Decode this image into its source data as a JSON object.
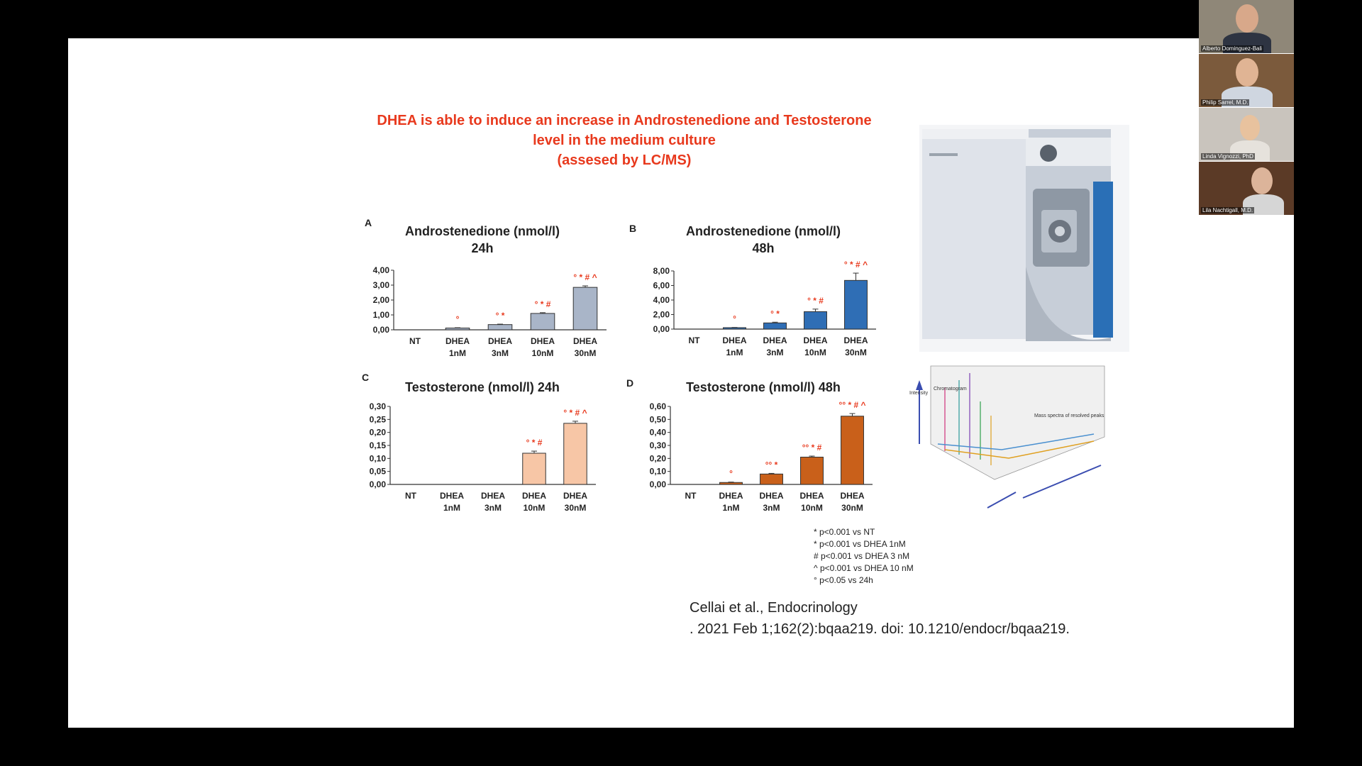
{
  "slide": {
    "title_lines": [
      "DHEA is able to induce an increase in Androstenedione and Testosterone",
      "level in the medium culture",
      "(assesed by LC/MS)"
    ],
    "legend": [
      "* p<0.001 vs NT",
      "* p<0.001 vs DHEA 1nM",
      "# p<0.001 vs DHEA 3 nM",
      "^ p<0.001 vs DHEA 10 nM",
      "° p<0.05 vs 24h"
    ],
    "citation_lines": [
      "Cellai et al., Endocrinology",
      ". 2021 Feb 1;162(2):bqaa219. doi: 10.1210/endocr/bqaa219."
    ],
    "figure_labels": {
      "intensity": "Intensity",
      "chromatogram": "Chromatogram",
      "mass_spectra": "Mass spectra of resolved peaks"
    }
  },
  "participants": [
    {
      "name": "Alberto Dominguez-Bali"
    },
    {
      "name": "Philip Sarrel, M.D."
    },
    {
      "name": "Linda Vignozzi, PhD"
    },
    {
      "name": "Lila Nachtigall, M.D."
    }
  ],
  "chart_data": [
    {
      "panel": "A",
      "type": "bar",
      "title_lines": [
        "Androstenedione (nmol/l)",
        "24h"
      ],
      "categories": [
        [
          "NT"
        ],
        [
          "DHEA",
          "1nM"
        ],
        [
          "DHEA",
          "3nM"
        ],
        [
          "DHEA",
          "10nM"
        ],
        [
          "DHEA",
          "30nM"
        ]
      ],
      "values": [
        0,
        0.12,
        0.35,
        1.1,
        2.85
      ],
      "errors": [
        0,
        0.02,
        0.03,
        0.05,
        0.1
      ],
      "yticks": [
        "4,00",
        "3,00",
        "2,00",
        "1,00",
        "0,00"
      ],
      "ylim": [
        0,
        4
      ],
      "annotations": [
        "",
        "°",
        "° *",
        "° * #",
        "° * # ^"
      ],
      "color": "#a9b5c8"
    },
    {
      "panel": "B",
      "type": "bar",
      "title_lines": [
        "Androstenedione (nmol/l)",
        "48h"
      ],
      "categories": [
        [
          "NT"
        ],
        [
          "DHEA",
          "1nM"
        ],
        [
          "DHEA",
          "3nM"
        ],
        [
          "DHEA",
          "10nM"
        ],
        [
          "DHEA",
          "30nM"
        ]
      ],
      "values": [
        0,
        0.2,
        0.85,
        2.4,
        6.7
      ],
      "errors": [
        0,
        0.03,
        0.1,
        0.35,
        1.0
      ],
      "yticks": [
        "8,00",
        "6,00",
        "4,00",
        "2,00",
        "0,00"
      ],
      "ylim": [
        0,
        8
      ],
      "annotations": [
        "",
        "°",
        "° *",
        "° * #",
        "° * # ^"
      ],
      "color": "#2f6eb5"
    },
    {
      "panel": "C",
      "type": "bar",
      "title_lines": [
        "Testosterone (nmol/l) 24h"
      ],
      "categories": [
        [
          "NT"
        ],
        [
          "DHEA",
          "1nM"
        ],
        [
          "DHEA",
          "3nM"
        ],
        [
          "DHEA",
          "10nM"
        ],
        [
          "DHEA",
          "30nM"
        ]
      ],
      "values": [
        0,
        0,
        0,
        0.12,
        0.235
      ],
      "errors": [
        0,
        0,
        0,
        0.008,
        0.008
      ],
      "yticks": [
        "0,30",
        "0,25",
        "0,20",
        "0,15",
        "0,10",
        "0,05",
        "0,00"
      ],
      "ylim": [
        0,
        0.3
      ],
      "annotations": [
        "",
        "",
        "",
        "° * #",
        "° * # ^"
      ],
      "color": "#f7c6a6"
    },
    {
      "panel": "D",
      "type": "bar",
      "title_lines": [
        "Testosterone (nmol/l) 48h"
      ],
      "categories": [
        [
          "NT"
        ],
        [
          "DHEA",
          "1nM"
        ],
        [
          "DHEA",
          "3nM"
        ],
        [
          "DHEA",
          "10nM"
        ],
        [
          "DHEA",
          "30nM"
        ]
      ],
      "values": [
        0,
        0.015,
        0.08,
        0.21,
        0.525
      ],
      "errors": [
        0,
        0.003,
        0.005,
        0.008,
        0.02
      ],
      "yticks": [
        "0,60",
        "0,50",
        "0,40",
        "0,30",
        "0,20",
        "0,10",
        "0,00"
      ],
      "ylim": [
        0,
        0.6
      ],
      "annotations": [
        "",
        "°",
        "°° *",
        "°° * #",
        "°° * # ^"
      ],
      "color": "#c9601a"
    }
  ]
}
